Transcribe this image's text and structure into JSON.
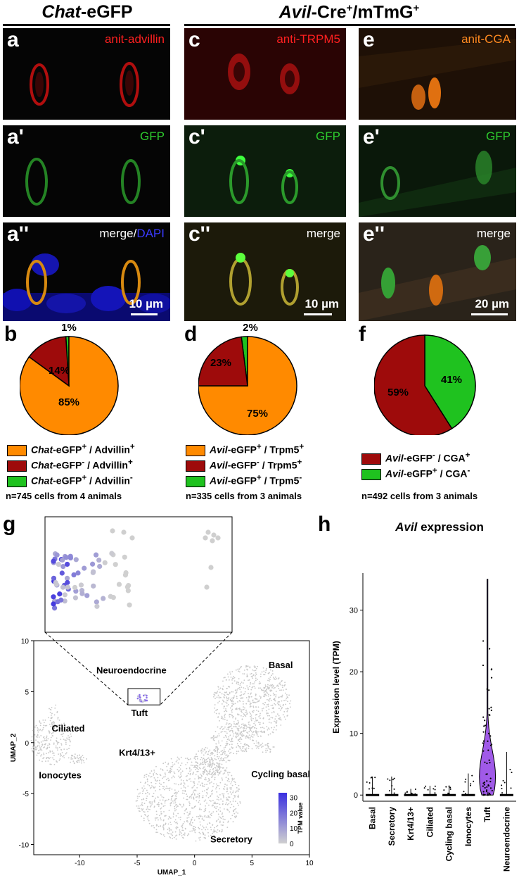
{
  "headers": {
    "left_italic": "Chat",
    "left_rest": "-eGFP",
    "right_italic": "Avil",
    "right_rest": "-Cre",
    "right_sup1": "+",
    "right_mid": "/mTmG",
    "right_sup2": "+"
  },
  "panels": {
    "a": {
      "label": "a",
      "channel": "anit-advillin"
    },
    "a1": {
      "label": "a'",
      "channel": "GFP"
    },
    "a2": {
      "label": "a''",
      "channel_merge": "merge/",
      "channel_dapi": "DAPI",
      "scale": "10 µm"
    },
    "c": {
      "label": "c",
      "channel": "anti-TRPM5"
    },
    "c1": {
      "label": "c'",
      "channel": "GFP"
    },
    "c2": {
      "label": "c''",
      "channel": "merge",
      "scale": "10 µm"
    },
    "e": {
      "label": "e",
      "channel": "anit-CGA"
    },
    "e1": {
      "label": "e'",
      "channel": "GFP"
    },
    "e2": {
      "label": "e''",
      "channel": "merge",
      "scale": "20 µm"
    }
  },
  "pie_labels": {
    "b": "b",
    "d": "d",
    "f": "f"
  },
  "colors": {
    "orange": "#ff8a00",
    "darkred": "#9e0b0b",
    "green": "#1fc21f",
    "tpm_low": "#d0d0d0",
    "tpm_high": "#3a2fe0",
    "violin": "#a05ae8"
  },
  "chart_data": [
    {
      "type": "pie",
      "panel": "b",
      "slices": [
        {
          "label": "Chat-eGFP+ / Advillin+",
          "value": 85,
          "color": "#ff8a00",
          "text": "85%"
        },
        {
          "label": "Chat-eGFP- / Advillin+",
          "value": 14,
          "color": "#9e0b0b",
          "text": "14%"
        },
        {
          "label": "Chat-eGFP+ / Advillin-",
          "value": 1,
          "color": "#1fc21f",
          "text": "1%"
        }
      ],
      "legend": [
        {
          "italic": "Chat",
          "rest": "-eGFP",
          "sup1": "+",
          "mid": " / Advillin",
          "sup2": "+",
          "color": "#ff8a00"
        },
        {
          "italic": "Chat",
          "rest": "-eGFP",
          "sup1": "-",
          "mid": " / Advillin",
          "sup2": "+",
          "color": "#9e0b0b"
        },
        {
          "italic": "Chat",
          "rest": "-eGFP",
          "sup1": "+",
          "mid": " / Advillin",
          "sup2": "-",
          "color": "#1fc21f"
        }
      ],
      "n_text": "n=745 cells from 4 animals"
    },
    {
      "type": "pie",
      "panel": "d",
      "slices": [
        {
          "label": "Avil-eGFP+ / Trpm5+",
          "value": 75,
          "color": "#ff8a00",
          "text": "75%"
        },
        {
          "label": "Avil-eGFP- / Trpm5+",
          "value": 23,
          "color": "#9e0b0b",
          "text": "23%"
        },
        {
          "label": "Avil-eGFP+ / Trpm5-",
          "value": 2,
          "color": "#1fc21f",
          "text": "2%"
        }
      ],
      "legend": [
        {
          "italic": "Avil",
          "rest": "-eGFP",
          "sup1": "+",
          "mid": " / Trpm5",
          "sup2": "+",
          "color": "#ff8a00"
        },
        {
          "italic": "Avil",
          "rest": "-eGFP",
          "sup1": "-",
          "mid": " / Trpm5",
          "sup2": "+",
          "color": "#9e0b0b"
        },
        {
          "italic": "Avil",
          "rest": "-eGFP",
          "sup1": "+",
          "mid": " / Trpm5",
          "sup2": "-",
          "color": "#1fc21f"
        }
      ],
      "n_text": "n=335 cells from 3 animals"
    },
    {
      "type": "pie",
      "panel": "f",
      "slices": [
        {
          "label": "Avil-eGFP+ / CGA-",
          "value": 41,
          "color": "#1fc21f",
          "text": "41%"
        },
        {
          "label": "Avil-eGFP- / CGA+",
          "value": 59,
          "color": "#9e0b0b",
          "text": "59%"
        }
      ],
      "legend": [
        {
          "italic": "Avil",
          "rest": "-eGFP",
          "sup1": "-",
          "mid": " / CGA",
          "sup2": "+",
          "color": "#9e0b0b"
        },
        {
          "italic": "Avil",
          "rest": "-eGFP",
          "sup1": "+",
          "mid": " / CGA",
          "sup2": "-",
          "color": "#1fc21f"
        }
      ],
      "n_text": "n=492 cells from 3 animals"
    },
    {
      "type": "scatter",
      "panel": "g",
      "xlabel": "UMAP_1",
      "ylabel": "UMAP_2",
      "xlim": [
        -14,
        10
      ],
      "ylim": [
        -11,
        10
      ],
      "xticks": [
        -10,
        -5,
        0,
        5,
        10
      ],
      "yticks": [
        -10,
        -5,
        0,
        5,
        10
      ],
      "cluster_labels": [
        "Neuroendocrine",
        "Basal",
        "Tuft",
        "Ciliated",
        "Krt4/13+",
        "Ionocytes",
        "Cycling basal",
        "Secretory"
      ],
      "colorbar": {
        "title": "TPM value",
        "ticks": [
          0,
          10,
          20,
          30
        ]
      }
    },
    {
      "type": "violin",
      "panel": "h",
      "title_italic": "Avil",
      "title_rest": " expression",
      "ylabel": "Expression level (TPM)",
      "ylim": [
        -1,
        36
      ],
      "yticks": [
        0,
        10,
        20,
        30
      ],
      "categories": [
        "Basal",
        "Secretory",
        "Krt4/13+",
        "Ciliated",
        "Cycling basal",
        "Ionocytes",
        "Tuft",
        "Neuroendocrine"
      ],
      "max_values": [
        3,
        3,
        1,
        1.5,
        1.5,
        3.5,
        35,
        7
      ],
      "medians": [
        0,
        0,
        0,
        0,
        0,
        0,
        3,
        0
      ]
    }
  ]
}
